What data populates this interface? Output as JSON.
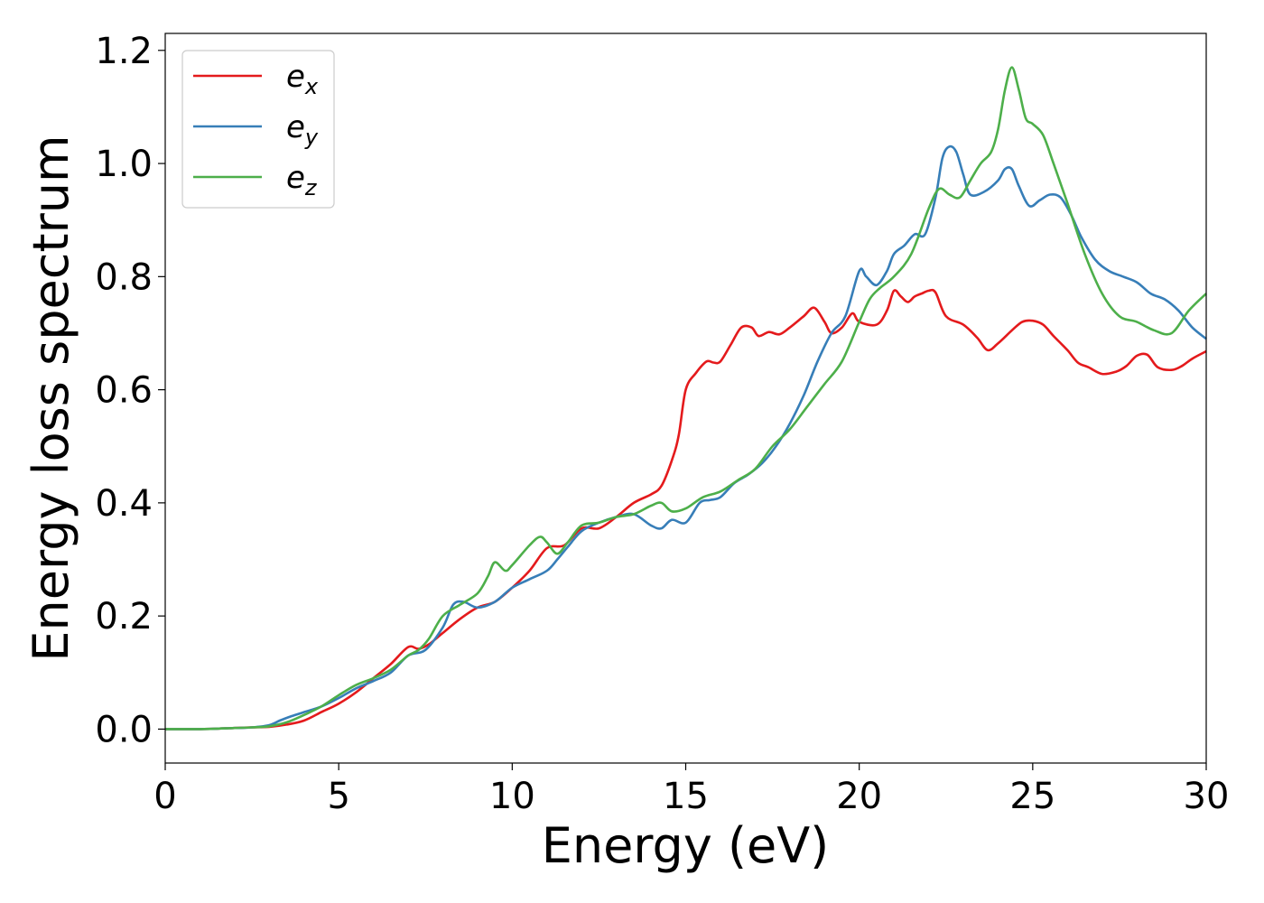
{
  "chart_data": {
    "type": "line",
    "xlabel": "Energy (eV)",
    "ylabel": "Energy loss spectrum",
    "xlim": [
      0,
      30
    ],
    "ylim": [
      -0.06,
      1.23
    ],
    "xticks": [
      "0",
      "5",
      "10",
      "15",
      "20",
      "25",
      "30"
    ],
    "yticks": [
      "0.0",
      "0.2",
      "0.4",
      "0.6",
      "0.8",
      "1.0",
      "1.2"
    ],
    "grid": false,
    "legend_position": "top-left",
    "series": [
      {
        "name": "e",
        "subscript": "x",
        "color": "#e41a1c",
        "x": [
          0,
          1,
          2,
          2.5,
          3,
          3.5,
          4,
          4.5,
          5,
          5.5,
          6,
          6.5,
          7,
          7.3,
          7.6,
          8,
          8.5,
          9,
          9.5,
          10,
          10.5,
          11,
          11.5,
          12,
          12.5,
          13,
          13.5,
          14,
          14.3,
          14.6,
          14.8,
          15,
          15.3,
          15.6,
          15.8,
          16,
          16.3,
          16.6,
          16.9,
          17.1,
          17.4,
          17.7,
          18,
          18.4,
          18.7,
          19,
          19.2,
          19.5,
          19.8,
          20,
          20.5,
          20.8,
          21,
          21.2,
          21.4,
          21.6,
          21.8,
          22,
          22.2,
          22.5,
          23,
          23.4,
          23.7,
          24,
          24.4,
          24.7,
          25,
          25.3,
          25.6,
          26,
          26.3,
          26.6,
          27,
          27.4,
          27.7,
          28,
          28.3,
          28.6,
          29,
          29.3,
          29.6,
          30
        ],
        "y": [
          0,
          0,
          0.002,
          0.003,
          0.004,
          0.008,
          0.015,
          0.03,
          0.045,
          0.065,
          0.09,
          0.115,
          0.145,
          0.142,
          0.15,
          0.17,
          0.195,
          0.215,
          0.225,
          0.25,
          0.28,
          0.32,
          0.325,
          0.355,
          0.355,
          0.375,
          0.4,
          0.415,
          0.43,
          0.475,
          0.52,
          0.6,
          0.63,
          0.65,
          0.648,
          0.65,
          0.68,
          0.71,
          0.71,
          0.695,
          0.702,
          0.698,
          0.71,
          0.73,
          0.745,
          0.72,
          0.7,
          0.71,
          0.735,
          0.72,
          0.715,
          0.74,
          0.775,
          0.765,
          0.755,
          0.765,
          0.77,
          0.775,
          0.772,
          0.73,
          0.715,
          0.692,
          0.67,
          0.682,
          0.705,
          0.72,
          0.722,
          0.715,
          0.695,
          0.67,
          0.648,
          0.64,
          0.628,
          0.632,
          0.642,
          0.66,
          0.662,
          0.64,
          0.635,
          0.642,
          0.655,
          0.668
        ]
      },
      {
        "name": "e",
        "subscript": "y",
        "color": "#377eb8",
        "x": [
          0,
          1,
          2,
          2.5,
          3,
          3.3,
          3.6,
          4,
          4.5,
          5,
          5.5,
          6,
          6.5,
          7,
          7.5,
          8,
          8.3,
          8.6,
          9,
          9.5,
          10,
          10.5,
          11,
          11.3,
          11.6,
          12,
          12.5,
          13,
          13.5,
          14,
          14.3,
          14.6,
          15,
          15.4,
          15.7,
          16,
          16.4,
          16.8,
          17.2,
          17.6,
          18,
          18.4,
          18.8,
          19.2,
          19.6,
          20,
          20.2,
          20.5,
          20.8,
          21,
          21.3,
          21.6,
          21.9,
          22.2,
          22.4,
          22.6,
          22.8,
          23,
          23.2,
          23.6,
          24,
          24.2,
          24.4,
          24.6,
          24.9,
          25.2,
          25.5,
          25.8,
          26.1,
          26.4,
          26.8,
          27.2,
          27.6,
          28,
          28.4,
          28.8,
          29.2,
          29.6,
          30
        ],
        "y": [
          0,
          0,
          0.002,
          0.003,
          0.007,
          0.015,
          0.022,
          0.03,
          0.04,
          0.055,
          0.072,
          0.085,
          0.1,
          0.13,
          0.14,
          0.18,
          0.22,
          0.225,
          0.215,
          0.225,
          0.25,
          0.265,
          0.28,
          0.3,
          0.322,
          0.35,
          0.365,
          0.375,
          0.38,
          0.36,
          0.355,
          0.37,
          0.365,
          0.4,
          0.405,
          0.41,
          0.435,
          0.45,
          0.47,
          0.5,
          0.54,
          0.59,
          0.65,
          0.7,
          0.73,
          0.81,
          0.8,
          0.785,
          0.81,
          0.84,
          0.855,
          0.875,
          0.875,
          0.94,
          1.01,
          1.03,
          1.02,
          0.98,
          0.945,
          0.95,
          0.97,
          0.99,
          0.99,
          0.96,
          0.925,
          0.935,
          0.945,
          0.94,
          0.91,
          0.87,
          0.83,
          0.81,
          0.8,
          0.79,
          0.77,
          0.76,
          0.74,
          0.71,
          0.69
        ]
      },
      {
        "name": "e",
        "subscript": "z",
        "color": "#4daf4a",
        "x": [
          0,
          1,
          2,
          2.5,
          3,
          3.5,
          4,
          4.5,
          5,
          5.5,
          6,
          6.5,
          7,
          7.3,
          7.6,
          8,
          8.5,
          9,
          9.3,
          9.5,
          9.8,
          10,
          10.5,
          10.8,
          11,
          11.3,
          11.6,
          12,
          12.5,
          13,
          13.5,
          14,
          14.3,
          14.6,
          15,
          15.5,
          16,
          16.5,
          17,
          17.5,
          18,
          18.5,
          19,
          19.5,
          20,
          20.3,
          20.6,
          21,
          21.5,
          22,
          22.3,
          22.6,
          22.9,
          23.2,
          23.5,
          23.8,
          24,
          24.2,
          24.4,
          24.6,
          24.8,
          25,
          25.3,
          25.6,
          26,
          26.5,
          27,
          27.5,
          28,
          28.5,
          29,
          29.5,
          30
        ],
        "y": [
          0,
          0,
          0.002,
          0.003,
          0.005,
          0.012,
          0.025,
          0.04,
          0.06,
          0.078,
          0.09,
          0.105,
          0.13,
          0.14,
          0.16,
          0.2,
          0.22,
          0.24,
          0.27,
          0.295,
          0.28,
          0.29,
          0.325,
          0.34,
          0.33,
          0.31,
          0.33,
          0.36,
          0.365,
          0.375,
          0.38,
          0.395,
          0.4,
          0.385,
          0.39,
          0.41,
          0.42,
          0.44,
          0.46,
          0.5,
          0.53,
          0.57,
          0.61,
          0.65,
          0.72,
          0.76,
          0.78,
          0.8,
          0.84,
          0.92,
          0.955,
          0.945,
          0.94,
          0.97,
          1.0,
          1.02,
          1.06,
          1.13,
          1.17,
          1.13,
          1.08,
          1.07,
          1.05,
          1.0,
          0.93,
          0.84,
          0.77,
          0.73,
          0.72,
          0.705,
          0.7,
          0.74,
          0.77
        ]
      }
    ]
  }
}
